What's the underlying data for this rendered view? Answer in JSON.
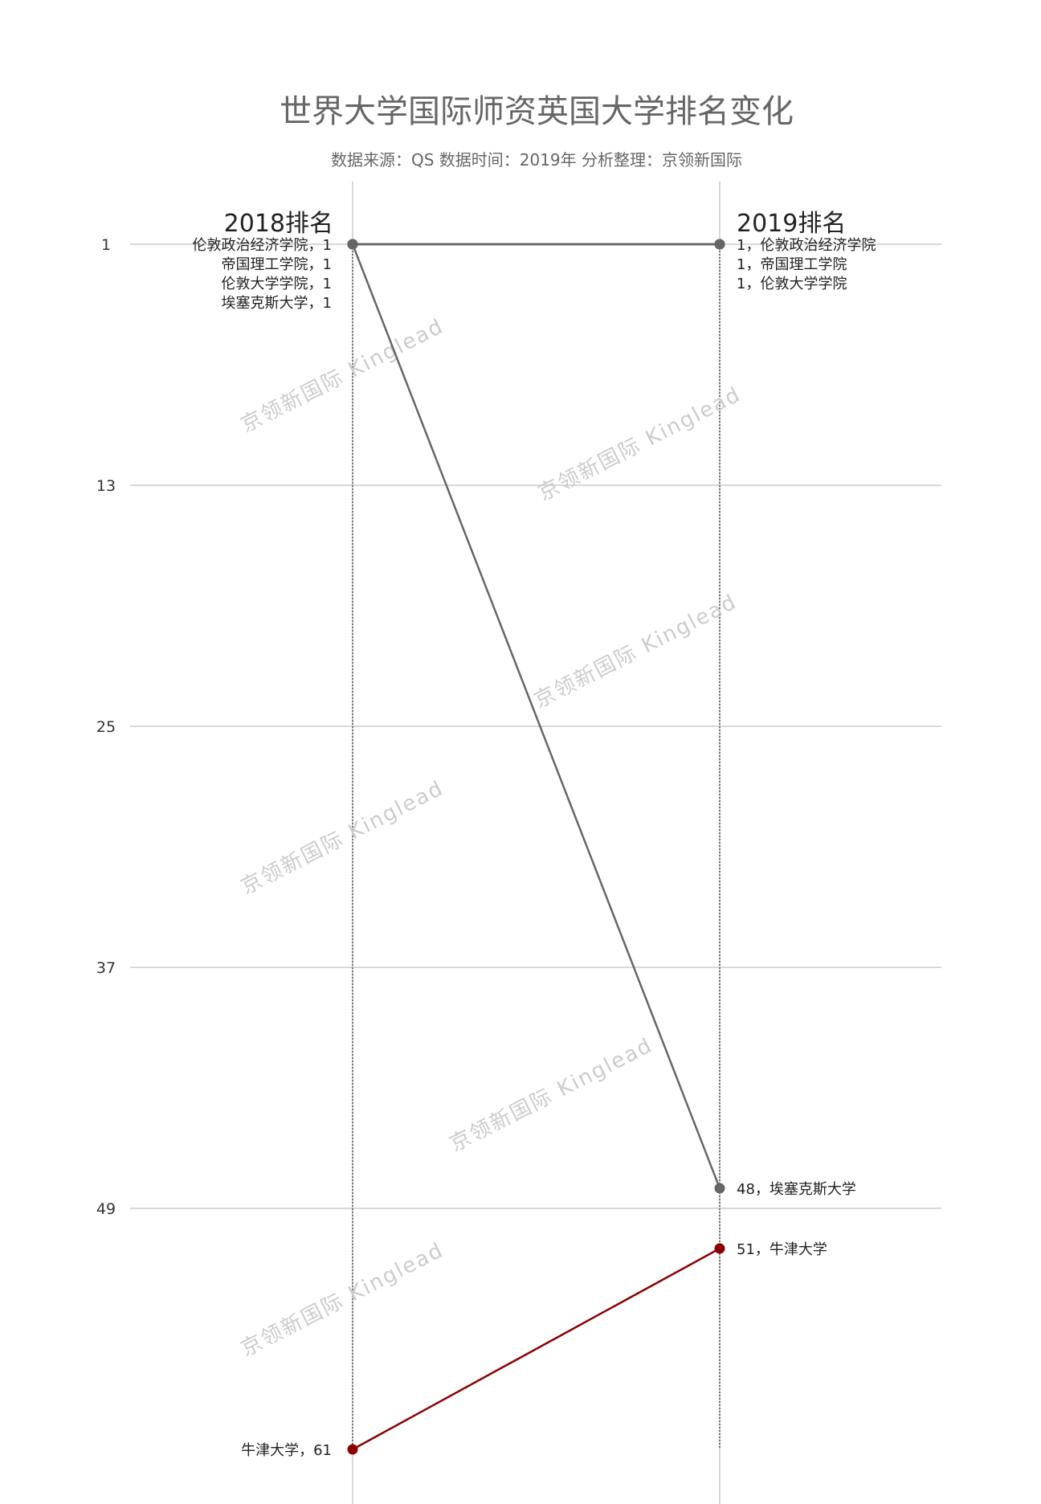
{
  "chart_data": {
    "type": "slope",
    "title": "世界大学国际师资英国大学排名变化",
    "subtitle": "数据来源：QS 数据时间：2019年 分析整理：京领新国际",
    "left_header": "2018排名",
    "right_header": "2019排名",
    "y_ticks": [
      1,
      13,
      25,
      37,
      49
    ],
    "y_range": [
      1,
      61
    ],
    "y_inverted": true,
    "grid": true,
    "series": [
      {
        "name": "伦敦政治经济学院",
        "y2018": 1,
        "y2019": 1,
        "color": "#666666"
      },
      {
        "name": "帝国理工学院",
        "y2018": 1,
        "y2019": 1,
        "color": "#666666"
      },
      {
        "name": "伦敦大学学院",
        "y2018": 1,
        "y2019": 1,
        "color": "#666666"
      },
      {
        "name": "埃塞克斯大学",
        "y2018": 1,
        "y2019": 48,
        "color": "#666666"
      },
      {
        "name": "牛津大学",
        "y2018": 61,
        "y2019": 51,
        "color": "#8b0000"
      }
    ],
    "watermark": "京领新国际 Kinglead"
  }
}
